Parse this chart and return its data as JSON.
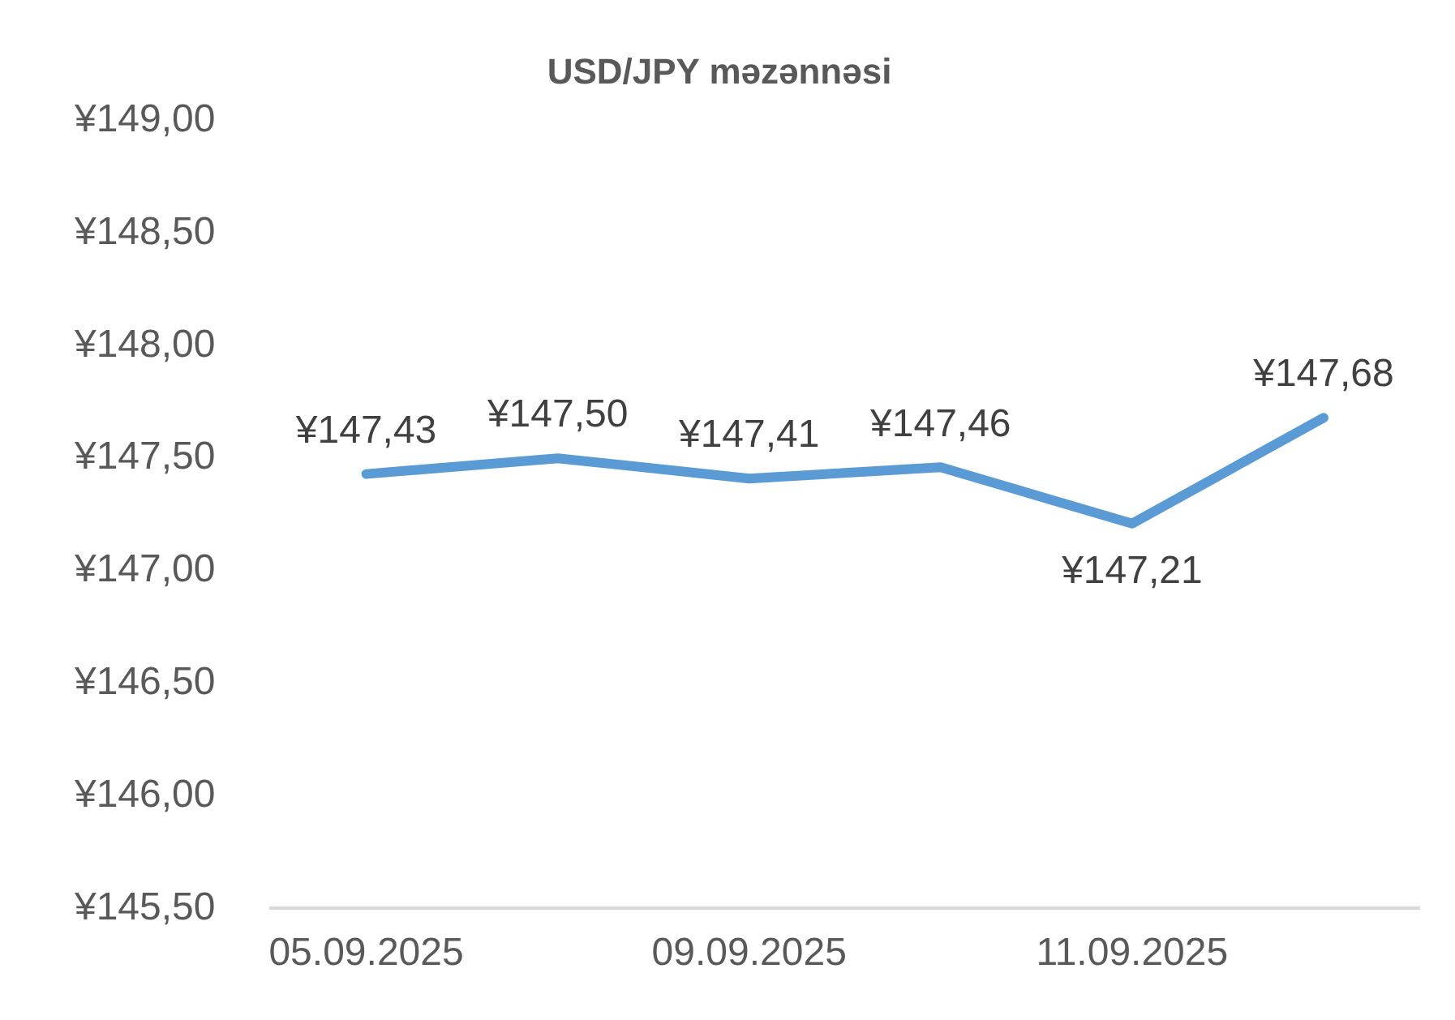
{
  "chart_data": {
    "type": "line",
    "title": "USD/JPY məzənnəsi",
    "categories": [
      "05.09.2025",
      null,
      "09.09.2025",
      null,
      "11.09.2025",
      null
    ],
    "series": [
      {
        "color": "#5b9bd5",
        "values": [
          147.43,
          147.5,
          147.41,
          147.46,
          147.21,
          147.68
        ],
        "value_labels": [
          "¥147,43",
          "¥147,50",
          "¥147,41",
          "¥147,46",
          "¥147,21",
          "¥147,68"
        ]
      }
    ],
    "ylim": [
      145.5,
      149
    ],
    "yticks": [
      {
        "value": 145.5,
        "label": "¥145,50"
      },
      {
        "value": 146,
        "label": "¥146,00"
      },
      {
        "value": 146.5,
        "label": "¥146,50"
      },
      {
        "value": 147,
        "label": "¥147,00"
      },
      {
        "value": 147.5,
        "label": "¥147,50"
      },
      {
        "value": 148,
        "label": "¥148,00"
      },
      {
        "value": 148.5,
        "label": "¥148,50"
      },
      {
        "value": 149,
        "label": "¥149,00"
      }
    ],
    "grid": false,
    "legend": false,
    "marker": "none",
    "line_style": "solid"
  }
}
